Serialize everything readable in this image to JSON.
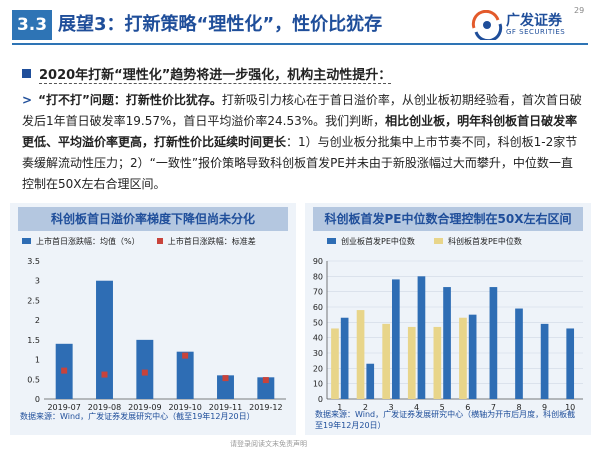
{
  "header": {
    "section_number": "3.3",
    "title": "展望3：打新策略“理性化”，性价比犹存",
    "logo_cn": "广发证券",
    "logo_en": "GF SECURITIES",
    "page_number": "29"
  },
  "bullet": "2020年打新“理性化”趋势将进一步强化，机构主动性提升：",
  "paragraph": {
    "lead": "“打不打”问题：打新性价比犹存。",
    "body1": "打新吸引力核心在于首日溢价率，从创业板初期经验看，首次首日破发后1年首日破发率19.57%，首日平均溢价率24.53%。我们判断，",
    "bold_mid": "相比创业板，明年科创板首日破发率更低、平均溢价率更高，打新性价比延续时间更长",
    "body2": "：1）与创业板分批集中上市节奏不同，科创板1-2家节奏缓解流动性压力；2）“一致性”报价策略导致科创板首发PE并未由于新股涨幅过大而攀升，中位数一直控制在50X左右合理区间。"
  },
  "colors": {
    "accent": "#2e74b5",
    "bar_blue": "#2e6db4",
    "marker_red": "#c8433b",
    "bar_yellow": "#e8d58a"
  },
  "chart_data": [
    {
      "type": "bar",
      "title": "科创板首日溢价率梯度下降但尚未分化",
      "categories": [
        "2019-07",
        "2019-08",
        "2019-09",
        "2019-10",
        "2019-11",
        "2019-12"
      ],
      "series": [
        {
          "name": "上市首日涨跌幅：均值（%）",
          "kind": "bar",
          "values": [
            1.4,
            3.0,
            1.5,
            1.2,
            0.6,
            0.55
          ]
        },
        {
          "name": "上市首日涨跌幅：标准差",
          "kind": "marker",
          "values": [
            0.72,
            0.62,
            0.67,
            1.1,
            0.53,
            0.48
          ]
        }
      ],
      "ylim": [
        0,
        3.5
      ],
      "yticks": [
        "0",
        "0.5",
        "1",
        "1.5",
        "2",
        "2.5",
        "3",
        "3.5"
      ],
      "legend": "top-left",
      "source": "数据来源：Wind，广发证券发展研究中心（截至19年12月20日）"
    },
    {
      "type": "bar",
      "title": "科创板首发PE中位数合理控制在50X左右区间",
      "categories": [
        "1",
        "2",
        "3",
        "4",
        "5",
        "6",
        "7",
        "8",
        "9",
        "10"
      ],
      "series": [
        {
          "name": "创业板首发PE中位数",
          "values": [
            53,
            23,
            78,
            80,
            73,
            55,
            73,
            59,
            49,
            46
          ]
        },
        {
          "name": "科创板首发PE中位数",
          "values": [
            46,
            58,
            49,
            47,
            47,
            53,
            null,
            null,
            null,
            null
          ]
        }
      ],
      "ylim": [
        0,
        90
      ],
      "yticks": [
        "0",
        "10",
        "20",
        "30",
        "40",
        "50",
        "60",
        "70",
        "80",
        "90"
      ],
      "legend": "top",
      "source": "数据来源：Wind，广发证券发展研究中心（横轴为开市后月度，科创板截至19年12月20日）"
    }
  ],
  "footer_note": "请登录阅读文末免责声明"
}
